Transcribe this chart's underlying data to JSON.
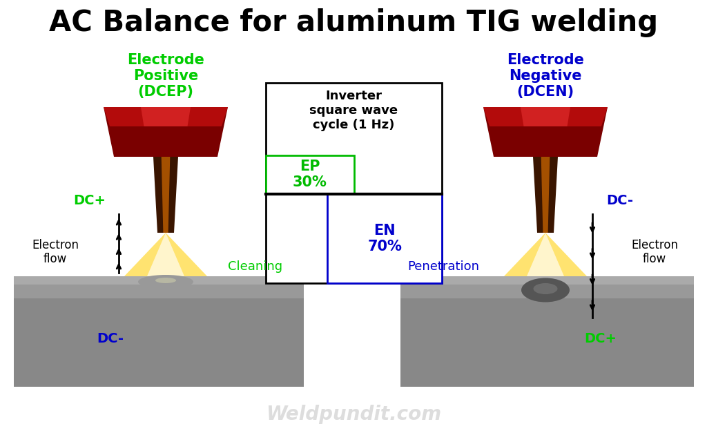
{
  "title": "AC Balance for aluminum TIG welding",
  "title_fontsize": 30,
  "title_fontweight": "bold",
  "bg_color": "#ffffff",
  "left_label": "Electrode\nPositive\n(DCEP)",
  "left_label_color": "#00cc00",
  "right_label": "Electrode\nNegative\n(DCEN)",
  "right_label_color": "#0000cc",
  "left_dc_plus": "DC+",
  "left_dc_minus": "DC-",
  "right_dc_minus": "DC-",
  "right_dc_plus": "DC+",
  "green_color": "#00cc00",
  "blue_color": "#0000cc",
  "cleaning_label": "Cleaning",
  "penetration_label": "Penetration",
  "electron_flow_label": "Electron\nflow",
  "box_title": "Inverter\nsquare wave\ncycle (1 Hz)",
  "ep_label": "EP\n30%",
  "en_label": "EN\n70%",
  "ep_color": "#00bb00",
  "en_color": "#0000cc",
  "watermark": "Weldpundit.com",
  "watermark_color": "#cccccc",
  "fig_width": 10.24,
  "fig_height": 6.4,
  "dpi": 100
}
